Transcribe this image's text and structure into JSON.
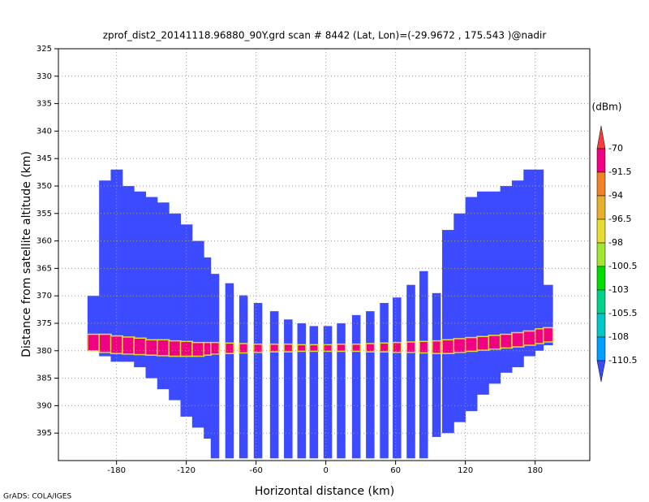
{
  "chart_data": {
    "type": "profile",
    "title": "zprof_dist2_20141118.96880_90Y.grd  scan # 8442  (Lat, Lon)=(-29.9672 , 175.543 )@nadir",
    "x_label": "Horizontal distance (km)",
    "y_label": "Distance from satellite altitude (km)",
    "footer": "GrADS: COLA/IGES",
    "xlim": [
      -230,
      227
    ],
    "ylim": [
      325,
      400
    ],
    "y_reversed": true,
    "xticks": [
      -180,
      -120,
      -60,
      0,
      60,
      120,
      180
    ],
    "yticks": [
      325,
      330,
      335,
      340,
      345,
      350,
      355,
      360,
      365,
      370,
      375,
      380,
      385,
      390,
      395
    ],
    "grid": true,
    "echo_color": "#3c4bff",
    "surface_color": "#f00082",
    "surface_edge_color": "#e6dc32",
    "columns": {
      "x_start": [
        -205,
        -195,
        -185,
        -175,
        -165,
        -155,
        -145,
        -135,
        -125,
        -115,
        -105,
        -99,
        -86.5,
        -74.5,
        -62,
        -48,
        -36,
        -24.5,
        -14,
        -2,
        9.5,
        22.5,
        34.5,
        46.5,
        57.5,
        69.5,
        80.5,
        91.5,
        100,
        110,
        120,
        130,
        140,
        150,
        160,
        170,
        180,
        187
      ],
      "x_end": [
        -195,
        -185,
        -175,
        -165,
        -155,
        -145,
        -135,
        -125,
        -115,
        -105,
        -99,
        -92,
        -79.5,
        -67.5,
        -55,
        -41,
        -29,
        -17.5,
        -7,
        5,
        16.5,
        29.5,
        41.5,
        53.5,
        64.5,
        76.5,
        87.5,
        98.5,
        110,
        120,
        130,
        140,
        150,
        160,
        170,
        180,
        187,
        195
      ],
      "top": [
        370,
        349,
        347,
        350,
        351,
        352,
        353,
        355,
        357,
        360,
        363,
        366,
        367.7,
        369.9,
        371.3,
        372.8,
        374.3,
        375,
        375.5,
        375.5,
        375,
        373.5,
        372.8,
        371.3,
        370.3,
        368,
        365.5,
        369.5,
        358,
        355,
        352,
        351,
        351,
        350,
        349,
        347,
        347,
        368
      ],
      "bottom": [
        379,
        381,
        382,
        382,
        383,
        385,
        387,
        389,
        392,
        394,
        396,
        399.6,
        399.6,
        399.6,
        399.6,
        399.6,
        399.6,
        399.6,
        399.6,
        399.6,
        399.6,
        399.6,
        399.6,
        399.6,
        399.6,
        399.6,
        399.6,
        395.7,
        395,
        393,
        391,
        388,
        386,
        384,
        383,
        381,
        380,
        379
      ],
      "surface_top": [
        377,
        377,
        377.3,
        377.5,
        377.7,
        378,
        378,
        378.2,
        378.3,
        378.5,
        378.5,
        378.5,
        378.6,
        378.7,
        378.8,
        378.8,
        378.8,
        378.9,
        378.9,
        378.9,
        378.8,
        378.8,
        378.7,
        378.6,
        378.5,
        378.4,
        378.3,
        378.2,
        378,
        377.8,
        377.6,
        377.4,
        377.2,
        377,
        376.7,
        376.4,
        376,
        375.8
      ],
      "surface_bottom": [
        380,
        380.3,
        380.5,
        380.6,
        380.7,
        380.8,
        380.9,
        381,
        381,
        381,
        380.8,
        380.6,
        380.5,
        380.4,
        380.3,
        380.2,
        380.2,
        380.1,
        380.1,
        380.1,
        380.1,
        380.1,
        380.2,
        380.2,
        380.3,
        380.3,
        380.4,
        380.5,
        380.5,
        380.3,
        380.1,
        379.9,
        379.7,
        379.5,
        379.3,
        379,
        378.7,
        378.4
      ]
    },
    "colorbar": {
      "unit": "(dBm)",
      "levels": [
        -70,
        -91.5,
        -94,
        -96.5,
        -98,
        -100.5,
        -103,
        -105.5,
        -108,
        -110.5
      ],
      "colors": [
        "#fa3c3c",
        "#f00082",
        "#f08228",
        "#e6af2d",
        "#e6dc32",
        "#a0e632",
        "#00dc00",
        "#00d28c",
        "#00c8c8",
        "#00a0ff",
        "#3c4bff"
      ]
    }
  }
}
